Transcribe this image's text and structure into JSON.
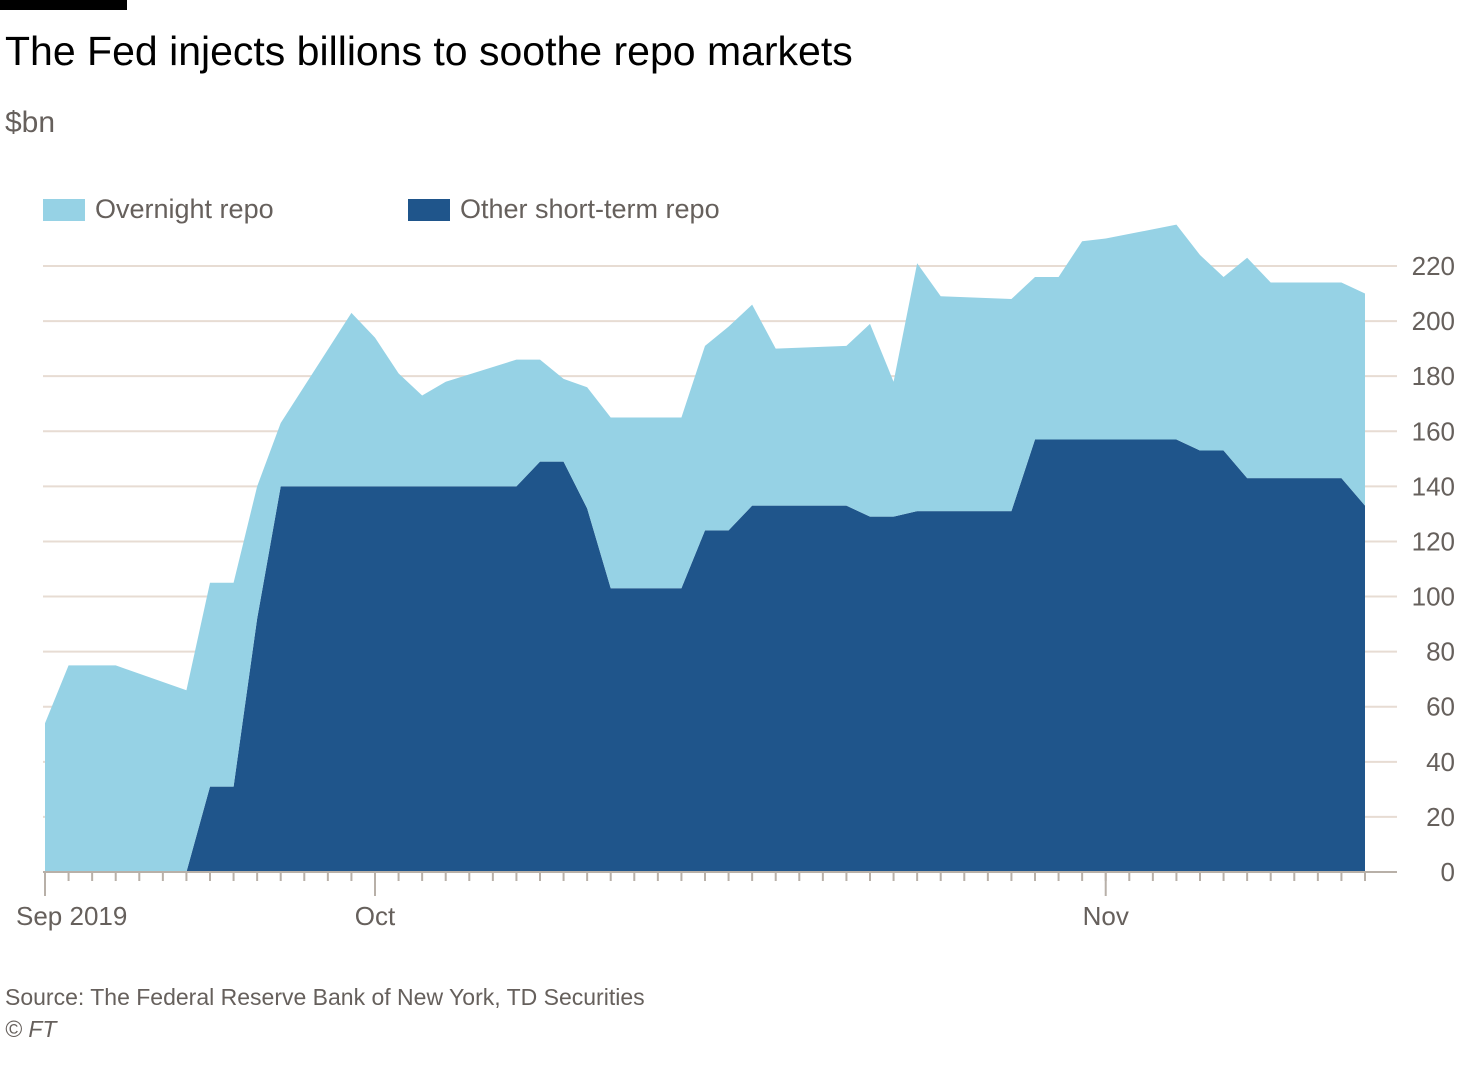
{
  "chart_data": {
    "type": "area",
    "stacked": true,
    "title": "The Fed injects billions to soothe repo markets",
    "ylabel": "$bn",
    "xlabel": "",
    "ylim": [
      0,
      230
    ],
    "yticks": [
      0,
      20,
      40,
      60,
      80,
      100,
      120,
      140,
      160,
      180,
      200,
      220
    ],
    "xticks": [
      {
        "date": "2019-09-17",
        "label": "Sep 2019"
      },
      {
        "date": "2019-10-01",
        "label": "Oct"
      },
      {
        "date": "2019-11-01",
        "label": "Nov"
      }
    ],
    "x_start": "2019-09-17",
    "x_end": "2019-11-12",
    "grid": true,
    "legend_position": "top-left",
    "x": [
      "2019-09-17",
      "2019-09-18",
      "2019-09-20",
      "2019-09-23",
      "2019-09-24",
      "2019-09-25",
      "2019-09-26",
      "2019-09-27",
      "2019-09-30",
      "2019-10-01",
      "2019-10-02",
      "2019-10-03",
      "2019-10-04",
      "2019-10-07",
      "2019-10-08",
      "2019-10-09",
      "2019-10-10",
      "2019-10-11",
      "2019-10-14",
      "2019-10-15",
      "2019-10-16",
      "2019-10-17",
      "2019-10-18",
      "2019-10-21",
      "2019-10-22",
      "2019-10-23",
      "2019-10-24",
      "2019-10-25",
      "2019-10-28",
      "2019-10-29",
      "2019-10-30",
      "2019-10-31",
      "2019-11-01",
      "2019-11-04",
      "2019-11-05",
      "2019-11-06",
      "2019-11-07",
      "2019-11-08",
      "2019-11-11",
      "2019-11-12"
    ],
    "series": [
      {
        "name": "Other short-term repo",
        "color": "#1f558b",
        "values": [
          0,
          0,
          0,
          0,
          31,
          31,
          92,
          140,
          140,
          140,
          140,
          140,
          140,
          140,
          149,
          149,
          132,
          103,
          103,
          124,
          124,
          133,
          133,
          133,
          129,
          129,
          131,
          131,
          131,
          157,
          157,
          157,
          157,
          157,
          153,
          153,
          143,
          143,
          143,
          133
        ]
      },
      {
        "name": "Overnight repo",
        "color": "#96d2e5",
        "values": [
          54,
          75,
          75,
          66,
          74,
          74,
          48,
          23,
          63,
          54,
          41,
          33,
          38,
          46,
          37,
          30,
          44,
          62,
          62,
          67,
          74,
          73,
          57,
          58,
          70,
          49,
          90,
          78,
          77,
          59,
          59,
          72,
          73,
          78,
          71,
          63,
          80,
          71,
          71,
          77
        ]
      }
    ]
  },
  "header": {
    "title": "The Fed injects billions to soothe repo markets",
    "unit": "$bn"
  },
  "legend": {
    "overnight": "Overnight repo",
    "other": "Other short-term repo"
  },
  "footer": {
    "source": "Source: The Federal Reserve Bank of New York, TD Securities",
    "copyright": "© FT"
  }
}
